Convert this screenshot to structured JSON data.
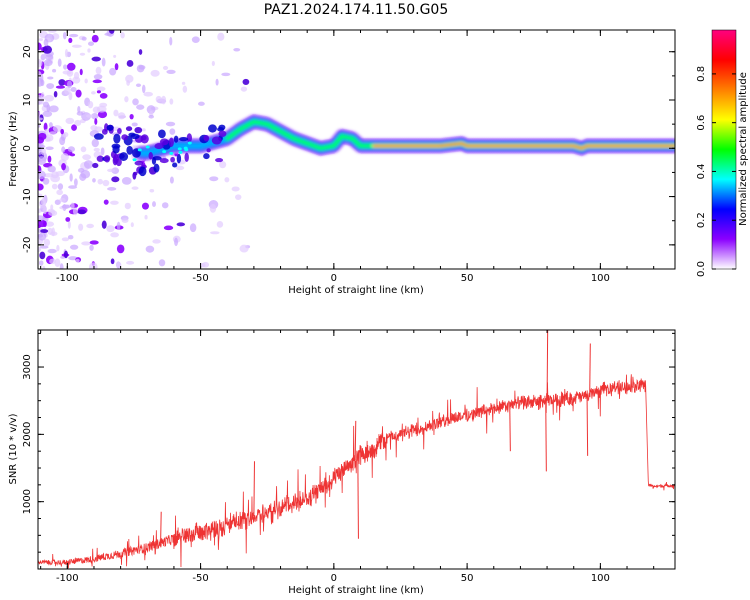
{
  "figure": {
    "title": "PAZ1.2024.174.11.50.G05"
  },
  "chart_data": [
    {
      "type": "heatmap",
      "xlabel": "Height of straight line (km)",
      "ylabel": "Frequency (Hz)",
      "xlim": [
        -111,
        128
      ],
      "ylim": [
        -25,
        24.5
      ],
      "xticks": [
        "-100",
        "-50",
        "0",
        "50",
        "100"
      ],
      "xtick_values": [
        -100,
        -50,
        0,
        50,
        100
      ],
      "yticks": [
        "-20",
        "-10",
        "0",
        "10",
        "20"
      ],
      "ytick_values": [
        -20,
        -10,
        0,
        10,
        20
      ],
      "colorbar": {
        "label": "Normalized spectral amplitude",
        "ticks": [
          "0.0",
          "0.2",
          "0.4",
          "0.6",
          "0.8"
        ],
        "tick_values": [
          0.0,
          0.2,
          0.4,
          0.6,
          0.8
        ],
        "range": [
          0,
          0.98
        ],
        "colormap": [
          "#ffffff",
          "#8b00ff",
          "#0000ff",
          "#00ffff",
          "#00ff00",
          "#ffff00",
          "#ff7f00",
          "#ff0000",
          "#ff007f"
        ]
      },
      "ridge": {
        "x": [
          -111,
          -100,
          -90,
          -80,
          -75,
          -70,
          -60,
          -50,
          -40,
          -35,
          -30,
          -25,
          -20,
          -15,
          -10,
          -5,
          0,
          3,
          7,
          10,
          15,
          20,
          30,
          40,
          48,
          50,
          60,
          70,
          80,
          90,
          93,
          95,
          100,
          110,
          128
        ],
        "y": [
          0,
          0,
          1,
          0.5,
          -1,
          -1,
          0.5,
          0.5,
          2,
          4,
          5.5,
          5,
          3.5,
          2,
          1,
          0,
          0.5,
          2.5,
          2,
          0.5,
          0.5,
          0.5,
          0.5,
          0.5,
          1,
          0.5,
          0.5,
          0.5,
          0.5,
          0.5,
          0,
          0.5,
          0.5,
          0.5,
          0.5
        ]
      },
      "grid": false
    },
    {
      "type": "line",
      "xlabel": "Height of straight line (km)",
      "ylabel": "SNR (10 * v/v)",
      "xlim": [
        -111,
        128
      ],
      "ylim": [
        0,
        3550
      ],
      "xticks": [
        "-100",
        "-50",
        "0",
        "50",
        "100"
      ],
      "xtick_values": [
        -100,
        -50,
        0,
        50,
        100
      ],
      "yticks": [
        "1000",
        "2000",
        "3000"
      ],
      "ytick_values": [
        1000,
        2000,
        3000
      ],
      "color": "#ee3333",
      "series": [
        {
          "x": [
            -111,
            -100,
            -90,
            -80,
            -70,
            -60,
            -50,
            -40,
            -30,
            -20,
            -10,
            -5,
            0,
            5,
            10,
            15,
            20,
            25,
            30,
            35,
            40,
            45,
            50,
            55,
            60,
            65,
            70,
            75,
            80,
            85,
            90,
            95,
            100,
            105,
            110,
            115,
            117,
            118,
            120,
            128
          ],
          "values": [
            100,
            100,
            150,
            230,
            320,
            450,
            550,
            650,
            780,
            900,
            1050,
            1180,
            1350,
            1500,
            1700,
            1800,
            1950,
            2000,
            2050,
            2120,
            2180,
            2250,
            2280,
            2330,
            2380,
            2420,
            2470,
            2480,
            2500,
            2520,
            2540,
            2580,
            2650,
            2700,
            2700,
            2720,
            2720,
            1250,
            1230,
            1240
          ],
          "spikes": [
            {
              "x": 80,
              "y": 3550
            },
            {
              "x": 79.5,
              "y": 1450
            },
            {
              "x": 96,
              "y": 3350
            },
            {
              "x": 95,
              "y": 1680
            },
            {
              "x": 9,
              "y": 450
            },
            {
              "x": 8,
              "y": 2200
            },
            {
              "x": 13,
              "y": 1700
            },
            {
              "x": -30,
              "y": 1600
            },
            {
              "x": -65,
              "y": 850
            },
            {
              "x": 66,
              "y": 1750
            }
          ]
        }
      ],
      "grid": false
    }
  ]
}
